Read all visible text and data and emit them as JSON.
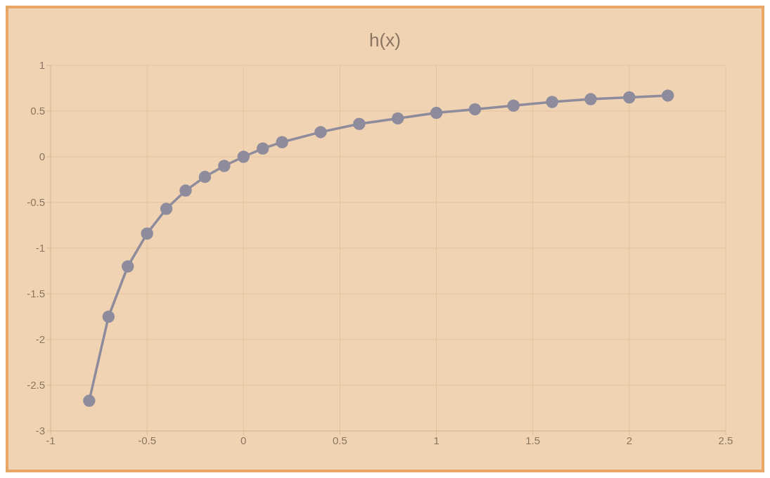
{
  "chart_data": {
    "type": "line",
    "title": "h(x)",
    "x": [
      -0.8,
      -0.7,
      -0.6,
      -0.5,
      -0.4,
      -0.3,
      -0.2,
      -0.1,
      0,
      0.1,
      0.2,
      0.4,
      0.6,
      0.8,
      1,
      1.2,
      1.4,
      1.6,
      1.8,
      2,
      2.2
    ],
    "series": [
      {
        "color": "#8e8c9c",
        "values": [
          -2.67,
          -1.75,
          -1.2,
          -0.84,
          -0.57,
          -0.37,
          -0.22,
          -0.1,
          0,
          0.09,
          0.16,
          0.27,
          0.36,
          0.42,
          0.48,
          0.52,
          0.56,
          0.6,
          0.63,
          0.65,
          0.67
        ]
      }
    ],
    "xlim": [
      -1,
      2.5
    ],
    "xticks": [
      -1,
      -0.5,
      0,
      0.5,
      1,
      1.5,
      2,
      2.5
    ],
    "ylim": [
      -3,
      1
    ],
    "yticks": [
      -3,
      -2.5,
      -2,
      -1.5,
      -1,
      -0.5,
      0,
      0.5,
      1
    ],
    "grid": true,
    "marker": "circle",
    "line_style": "solid"
  }
}
